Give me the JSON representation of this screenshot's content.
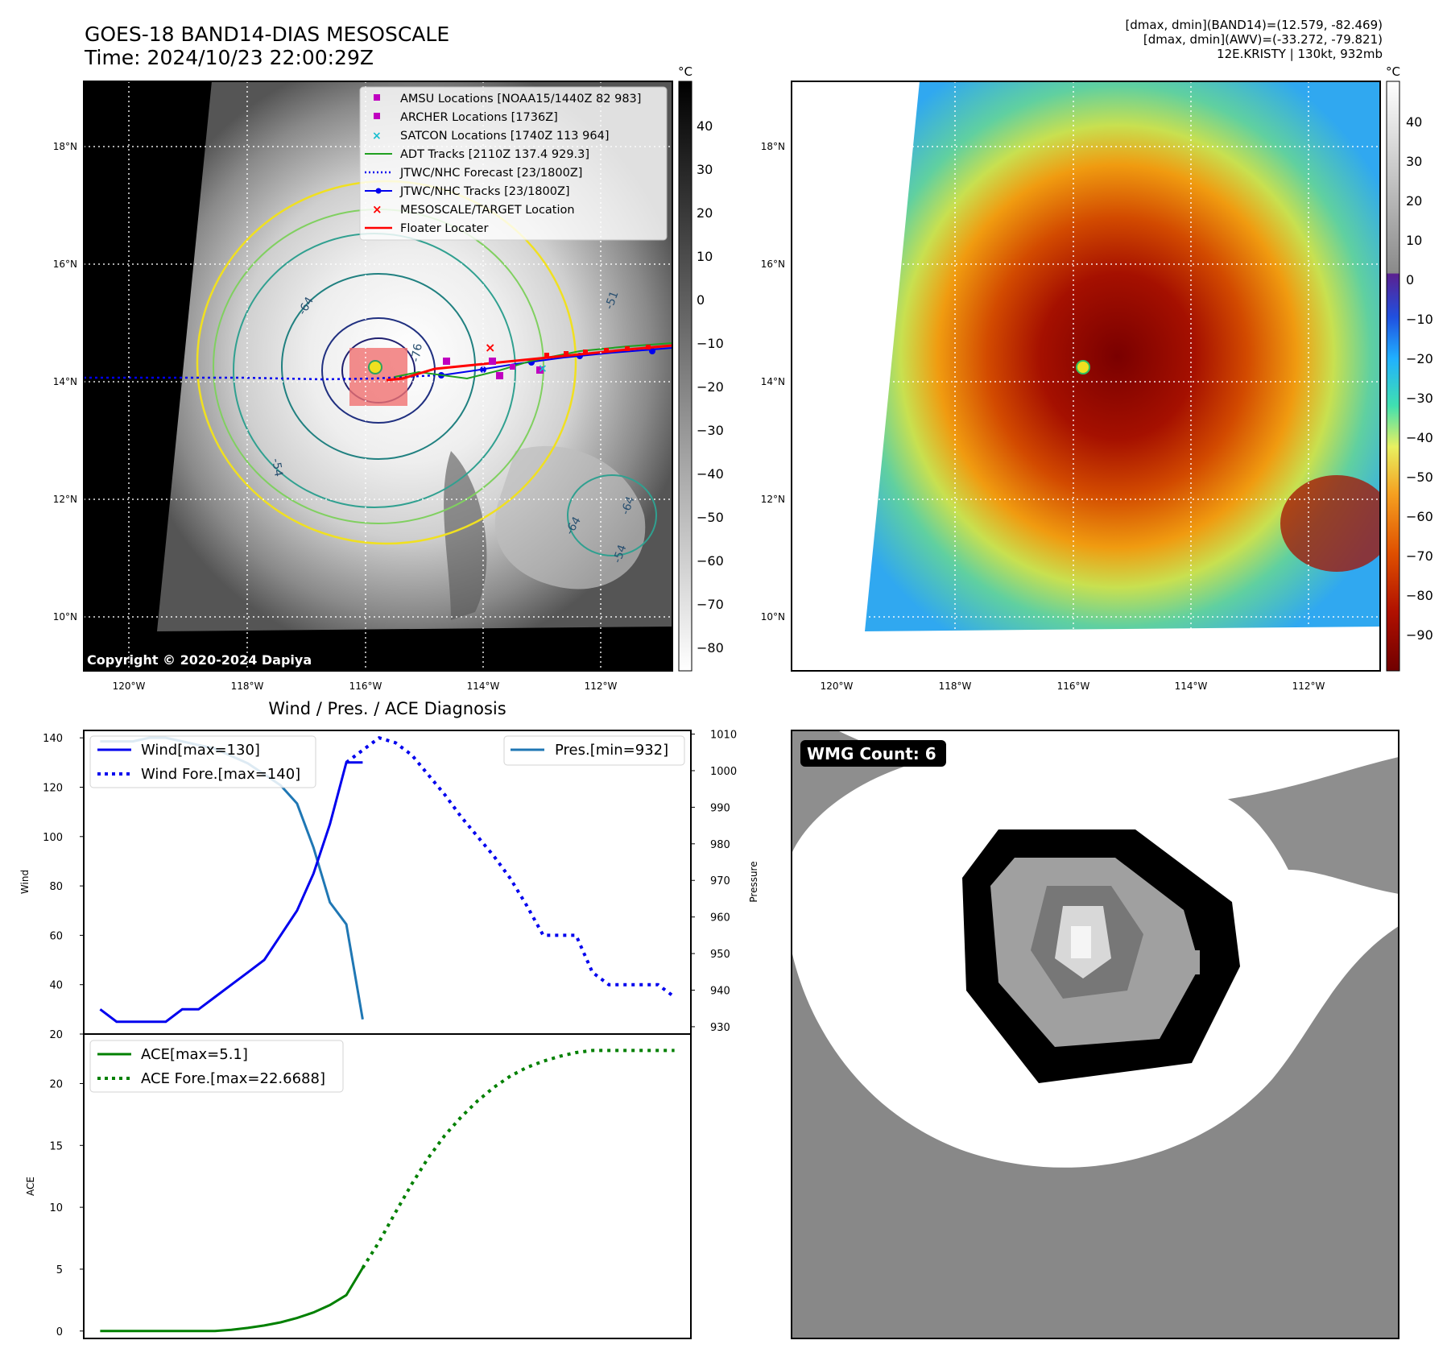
{
  "header": {
    "title_line1": "GOES-18 BAND14-DIAS MESOSCALE",
    "title_line2": "Time: 2024/10/23 22:00:29Z",
    "info_line1": "[dmax, dmin](BAND14)=(12.579, -82.469)",
    "info_line2": "[dmax, dmin](AWV)=(-33.272, -79.821)",
    "info_line3": "12E.KRISTY | 130kt, 932mb"
  },
  "map_axes": {
    "lat_ticks": [
      "18°N",
      "16°N",
      "14°N",
      "12°N",
      "10°N"
    ],
    "lon_ticks": [
      "120°W",
      "118°W",
      "116°W",
      "114°W",
      "112°W"
    ]
  },
  "gray_colorbar": {
    "unit": "°C",
    "ticks": [
      "40",
      "30",
      "20",
      "10",
      "0",
      "−10",
      "−20",
      "−30",
      "−40",
      "−50",
      "−60",
      "−70",
      "−80"
    ]
  },
  "color_colorbar": {
    "unit": "°C",
    "ticks": [
      "40",
      "30",
      "20",
      "10",
      "0",
      "−10",
      "−20",
      "−30",
      "−40",
      "−50",
      "−60",
      "−70",
      "−80",
      "−90"
    ]
  },
  "legend": {
    "items": [
      "AMSU Locations [NOAA15/1440Z 82 983]",
      "ARCHER Locations [1736Z]",
      "SATCON Locations [1740Z 113 964]",
      "ADT Tracks [2110Z 137.4 929.3]",
      "JTWC/NHC Forecast [23/1800Z]",
      "JTWC/NHC Tracks [23/1800Z]",
      "MESOSCALE/TARGET Location",
      "Floater Locater"
    ]
  },
  "contour_labels": [
    "-64",
    "-76",
    "-54",
    "-64",
    "-64",
    "-54",
    "-51"
  ],
  "copyright": "Copyright © 2020-2024 Dapiya",
  "wmg_label": "WMG Count: 6",
  "colors": {
    "wind": "#0000ee",
    "pressure": "#1f77b4",
    "ace": "#008000",
    "legend_magenta": "#c000c0",
    "legend_cyan": "#17becf",
    "red": "#ff0000"
  },
  "chart_data": [
    {
      "type": "line",
      "title": "Wind / Pres. / ACE Diagnosis",
      "ylabel": "Wind",
      "ylabel_right": "Pressure",
      "ylim": [
        20,
        143
      ],
      "ylim_right": [
        928,
        1011
      ],
      "xlim": [
        -1,
        36
      ],
      "yticks": [
        "140",
        "120",
        "100",
        "80",
        "60",
        "40",
        "20"
      ],
      "yticks_right": [
        "1010",
        "1000",
        "990",
        "980",
        "970",
        "960",
        "950",
        "940",
        "930"
      ],
      "series": [
        {
          "name": "Wind[max=130]",
          "style": "solid",
          "x": [
            0,
            1,
            2,
            3,
            4,
            5,
            6,
            7,
            8,
            9,
            10,
            11,
            12,
            13,
            14,
            15,
            16
          ],
          "values": [
            30,
            25,
            25,
            25,
            25,
            30,
            30,
            35,
            40,
            45,
            50,
            60,
            70,
            85,
            105,
            130,
            130
          ]
        },
        {
          "name": "Wind Fore.[max=140]",
          "style": "dotted",
          "x": [
            15,
            16,
            17,
            18,
            19,
            20,
            21,
            22,
            23,
            24,
            25,
            26,
            27,
            28,
            29,
            30,
            31,
            32,
            33,
            34,
            35
          ],
          "values": [
            130,
            135,
            140,
            138,
            133,
            125,
            117,
            108,
            100,
            92,
            83,
            72,
            60,
            60,
            60,
            45,
            40,
            40,
            40,
            40,
            35
          ]
        },
        {
          "name": "Pres.[min=932]",
          "style": "solid",
          "axis": "right",
          "x": [
            0,
            1,
            2,
            3,
            4,
            5,
            6,
            7,
            8,
            9,
            10,
            11,
            12,
            13,
            14,
            15,
            16
          ],
          "values": [
            1008,
            1008,
            1008,
            1009,
            1009,
            1008,
            1007,
            1006,
            1004,
            1002,
            999,
            996,
            991,
            979,
            964,
            958,
            932
          ]
        }
      ]
    },
    {
      "type": "line",
      "ylabel": "ACE",
      "ylim": [
        -0.6,
        24
      ],
      "xlim": [
        -1,
        36
      ],
      "yticks": [
        "20",
        "15",
        "10",
        "5",
        "0"
      ],
      "series": [
        {
          "name": "ACE[max=5.1]",
          "style": "solid",
          "x": [
            0,
            1,
            2,
            3,
            4,
            5,
            6,
            7,
            8,
            9,
            10,
            11,
            12,
            13,
            14,
            15,
            16
          ],
          "values": [
            0,
            0,
            0,
            0,
            0,
            0,
            0,
            0,
            0.1,
            0.25,
            0.45,
            0.7,
            1.05,
            1.5,
            2.1,
            2.9,
            5.1
          ]
        },
        {
          "name": "ACE Fore.[max=22.6688]",
          "style": "dotted",
          "x": [
            16,
            17,
            18,
            19,
            20,
            21,
            22,
            23,
            24,
            25,
            26,
            27,
            28,
            29,
            30,
            31,
            32,
            33,
            34,
            35
          ],
          "values": [
            5.1,
            7.2,
            9.6,
            11.9,
            14.0,
            15.8,
            17.3,
            18.6,
            19.7,
            20.6,
            21.3,
            21.8,
            22.2,
            22.5,
            22.67,
            22.67,
            22.67,
            22.67,
            22.67,
            22.67
          ]
        }
      ]
    }
  ]
}
